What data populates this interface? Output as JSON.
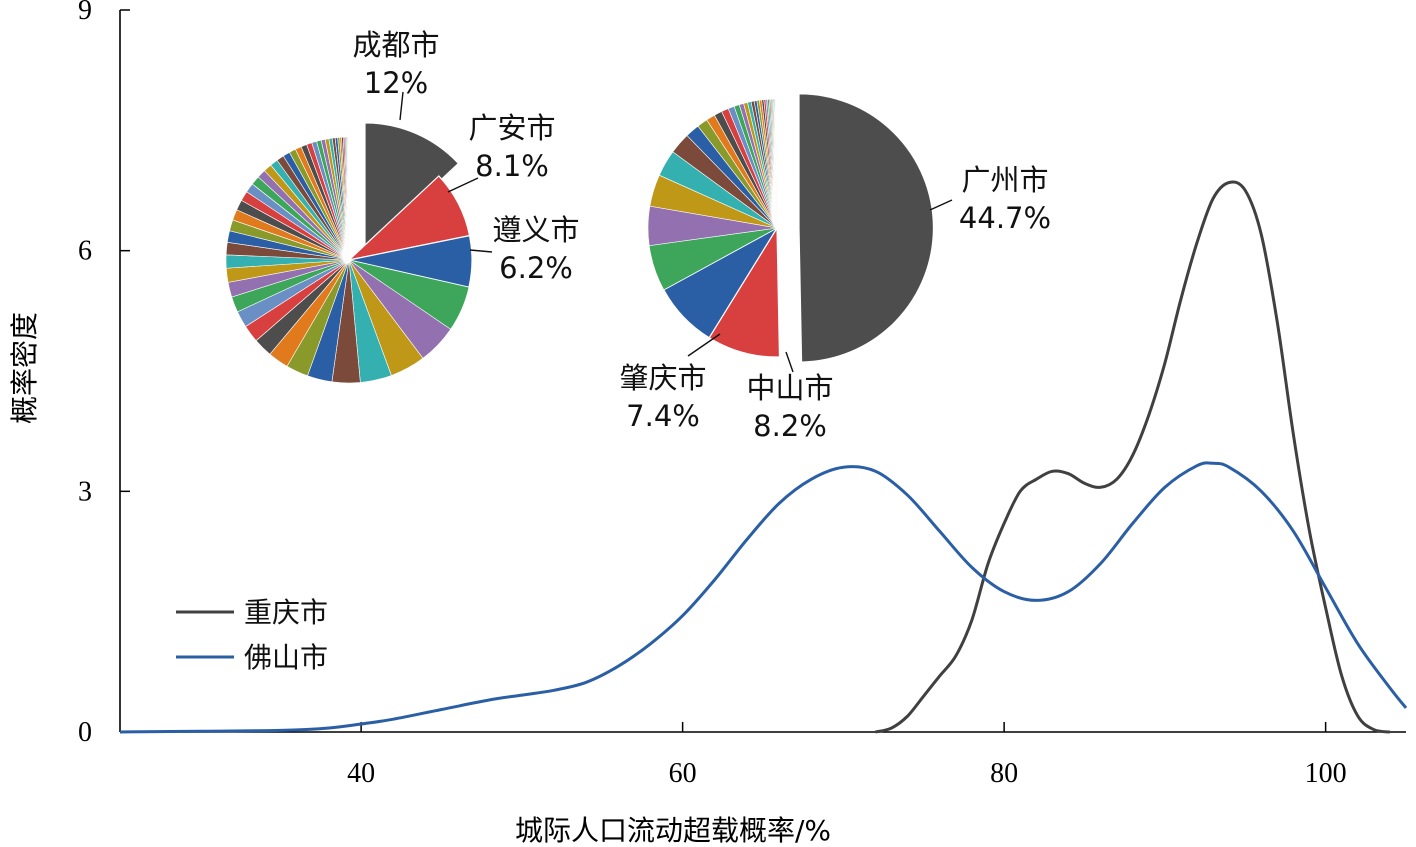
{
  "chart_data": {
    "type": "line",
    "xlabel": "城际人口流动超载概率/%",
    "ylabel": "概率密度",
    "xlim": [
      25,
      105
    ],
    "ylim": [
      0,
      9
    ],
    "xticks": [
      40,
      60,
      80,
      100
    ],
    "yticks": [
      0,
      3,
      6,
      9
    ],
    "grid": false,
    "legend": {
      "position": "bottom-left"
    },
    "series": [
      {
        "name": "重庆市",
        "color": "#404040",
        "points": [
          [
            72,
            0.0
          ],
          [
            73,
            0.05
          ],
          [
            74,
            0.2
          ],
          [
            75,
            0.45
          ],
          [
            76,
            0.7
          ],
          [
            77,
            0.95
          ],
          [
            78,
            1.4
          ],
          [
            79,
            2.1
          ],
          [
            80,
            2.6
          ],
          [
            81,
            3.0
          ],
          [
            82,
            3.15
          ],
          [
            83,
            3.25
          ],
          [
            84,
            3.22
          ],
          [
            85,
            3.1
          ],
          [
            86,
            3.05
          ],
          [
            87,
            3.15
          ],
          [
            88,
            3.45
          ],
          [
            89,
            3.95
          ],
          [
            90,
            4.6
          ],
          [
            91,
            5.4
          ],
          [
            92,
            6.1
          ],
          [
            93,
            6.65
          ],
          [
            94,
            6.85
          ],
          [
            95,
            6.75
          ],
          [
            96,
            6.2
          ],
          [
            97,
            5.1
          ],
          [
            98,
            3.7
          ],
          [
            99,
            2.5
          ],
          [
            100,
            1.55
          ],
          [
            101,
            0.7
          ],
          [
            102,
            0.2
          ],
          [
            103,
            0.03
          ],
          [
            104,
            0.0
          ]
        ]
      },
      {
        "name": "佛山市",
        "color": "#2b5fa5",
        "points": [
          [
            25,
            0.0
          ],
          [
            30,
            0.01
          ],
          [
            35,
            0.02
          ],
          [
            38,
            0.05
          ],
          [
            40,
            0.1
          ],
          [
            42,
            0.16
          ],
          [
            45,
            0.28
          ],
          [
            48,
            0.4
          ],
          [
            50,
            0.46
          ],
          [
            52,
            0.52
          ],
          [
            54,
            0.62
          ],
          [
            56,
            0.82
          ],
          [
            58,
            1.1
          ],
          [
            60,
            1.45
          ],
          [
            62,
            1.9
          ],
          [
            64,
            2.4
          ],
          [
            66,
            2.85
          ],
          [
            68,
            3.15
          ],
          [
            70,
            3.3
          ],
          [
            72,
            3.25
          ],
          [
            74,
            2.95
          ],
          [
            76,
            2.5
          ],
          [
            78,
            2.05
          ],
          [
            80,
            1.75
          ],
          [
            82,
            1.64
          ],
          [
            84,
            1.75
          ],
          [
            86,
            2.1
          ],
          [
            88,
            2.6
          ],
          [
            90,
            3.05
          ],
          [
            92,
            3.32
          ],
          [
            93,
            3.35
          ],
          [
            94,
            3.3
          ],
          [
            96,
            3.0
          ],
          [
            98,
            2.5
          ],
          [
            100,
            1.8
          ],
          [
            102,
            1.1
          ],
          [
            104,
            0.55
          ],
          [
            105,
            0.3
          ]
        ]
      }
    ],
    "pies": [
      {
        "id": "chongqing-pie",
        "labeled_slices": [
          {
            "name": "成都市",
            "percent_label": "12%",
            "value": 12,
            "color": "#4d4d4d",
            "exploded": true
          },
          {
            "name": "广安市",
            "percent_label": "8.1%",
            "value": 8.1,
            "color": "#d84040"
          },
          {
            "name": "遵义市",
            "percent_label": "6.2%",
            "value": 6.2,
            "color": "#2b5fa5"
          }
        ],
        "other_slices": [
          5.5,
          4.8,
          4.3,
          3.8,
          3.4,
          3.0,
          2.7,
          2.5,
          2.3,
          2.1,
          2.0,
          1.9,
          1.8,
          1.7,
          1.6,
          1.5,
          1.4,
          1.35,
          1.3,
          1.25,
          1.2,
          1.15,
          1.1,
          1.05,
          1.0,
          0.95,
          0.9,
          0.85,
          0.8,
          0.75,
          0.7,
          0.65,
          0.6,
          0.55,
          0.5,
          0.45,
          0.4,
          0.35,
          0.3,
          0.25,
          0.22,
          0.2,
          0.18,
          0.15,
          0.12,
          0.1,
          0.08,
          0.06
        ]
      },
      {
        "id": "foshan-pie",
        "labeled_slices": [
          {
            "name": "广州市",
            "percent_label": "44.7%",
            "value": 44.7,
            "color": "#4d4d4d",
            "exploded": true
          },
          {
            "name": "中山市",
            "percent_label": "8.2%",
            "value": 8.2,
            "color": "#d84040"
          },
          {
            "name": "肇庆市",
            "percent_label": "7.4%",
            "value": 7.4,
            "color": "#2b5fa5"
          }
        ],
        "other_slices": [
          5.2,
          4.4,
          3.6,
          3.0,
          2.4,
          1.6,
          1.2,
          1.0,
          0.9,
          0.8,
          0.7,
          0.6,
          0.5,
          0.45,
          0.4,
          0.35,
          0.3,
          0.28,
          0.26,
          0.24,
          0.22,
          0.2,
          0.18,
          0.16,
          0.14,
          0.12,
          0.1,
          0.09,
          0.08,
          0.07,
          0.06,
          0.05
        ]
      }
    ],
    "palette": [
      "#3ea65a",
      "#9370b0",
      "#c09818",
      "#35b0b0",
      "#7b4a3a",
      "#2b5fa5",
      "#8a9a2a",
      "#e07a1c",
      "#4d4d4d",
      "#d84040",
      "#6a8fc4"
    ]
  }
}
